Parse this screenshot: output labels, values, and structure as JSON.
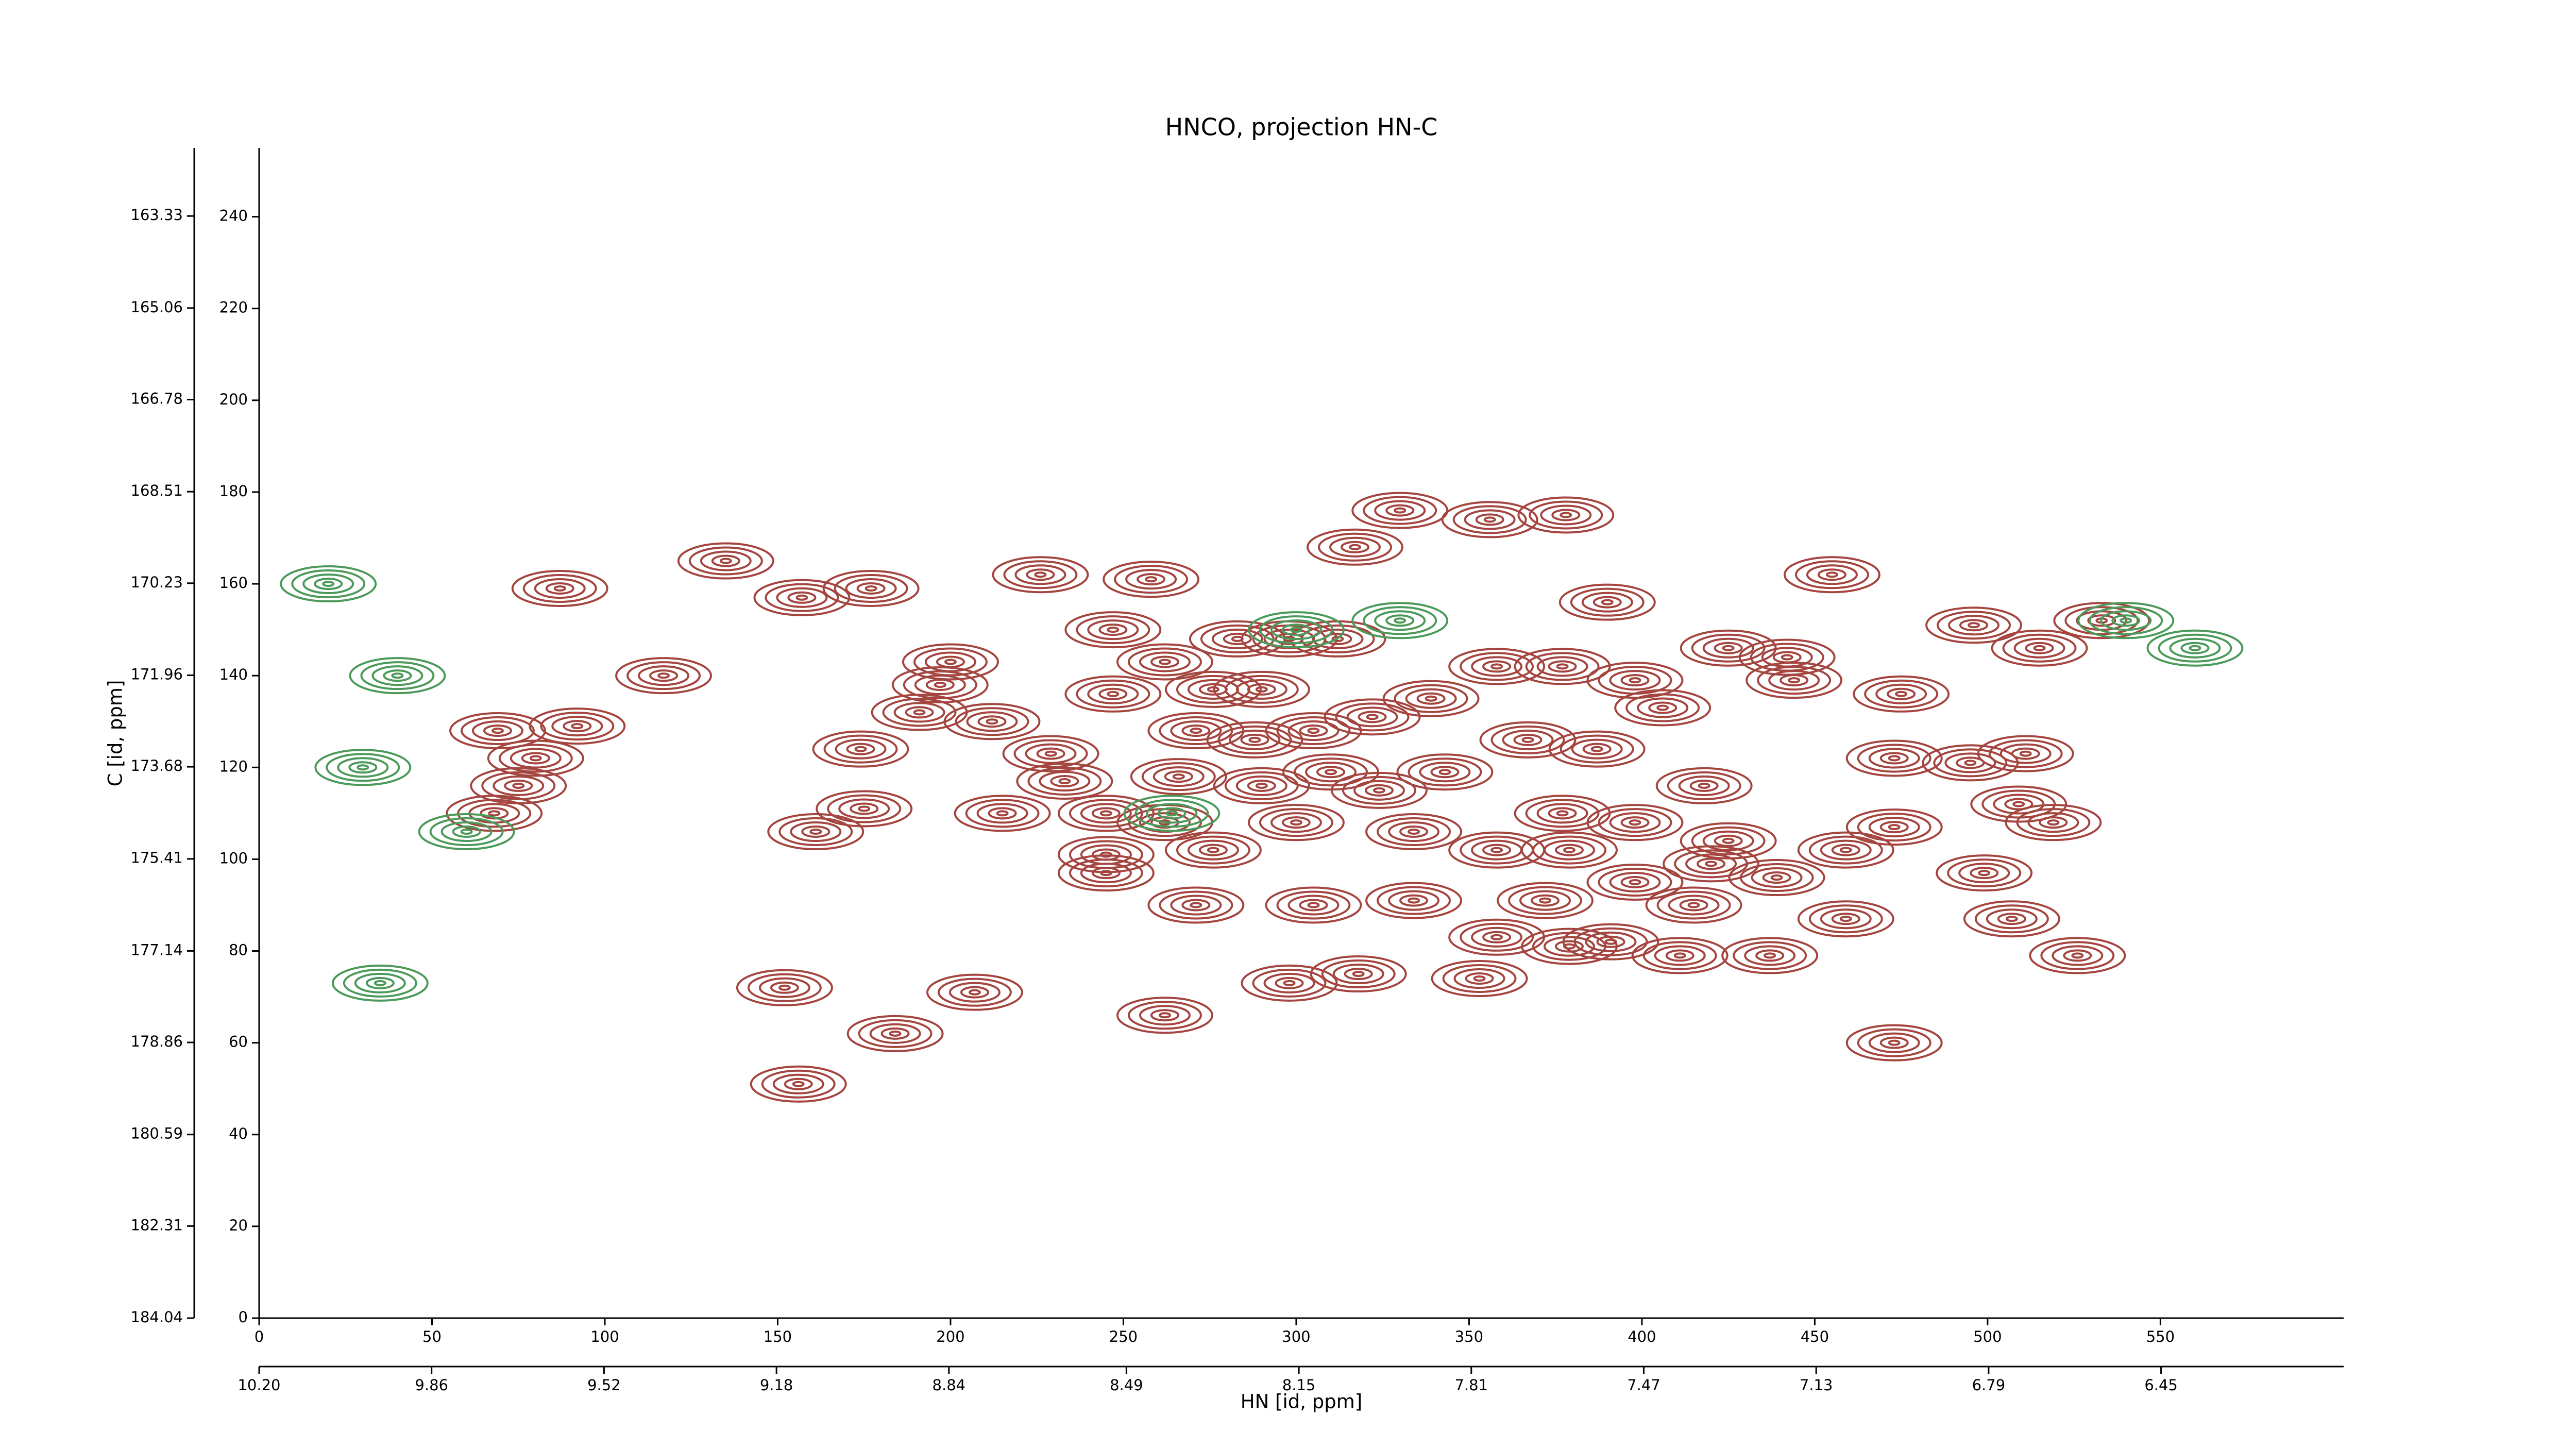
{
  "chart_data": {
    "type": "contour",
    "title": "HNCO, projection HN-C",
    "xlabel": "HN [id, ppm]",
    "ylabel": "C [id, ppm]",
    "xlim": [
      0,
      603
    ],
    "ylim": [
      0,
      255
    ],
    "xticks": [
      0,
      50,
      100,
      150,
      200,
      250,
      300,
      350,
      400,
      450,
      500,
      550
    ],
    "yticks": [
      0,
      20,
      40,
      60,
      80,
      100,
      120,
      140,
      160,
      180,
      200,
      220,
      240
    ],
    "x2lim": [
      10.2,
      6.09
    ],
    "x2ticks": [
      {
        "value": 10.2,
        "label": "10.20"
      },
      9.86,
      9.52,
      9.18,
      8.84,
      8.49,
      8.15,
      7.81,
      7.47,
      7.13,
      6.79,
      6.45
    ],
    "y2lim": [
      184.04,
      162.05
    ],
    "y2ticks": [
      184.04,
      182.31,
      180.59,
      178.86,
      177.14,
      175.41,
      173.68,
      171.96,
      170.23,
      168.51,
      166.78,
      165.06,
      163.33
    ],
    "series": [
      {
        "color": "#a4453f",
        "x": [
          87,
          135,
          157,
          177,
          226,
          258,
          330,
          356,
          378,
          317,
          390,
          455,
          496,
          533,
          515,
          117,
          200,
          197,
          191,
          212,
          69,
          92,
          80,
          75,
          68,
          174,
          229,
          233,
          215,
          175,
          161,
          247,
          262,
          247,
          283,
          298,
          312,
          276,
          290,
          271,
          288,
          305,
          322,
          339,
          358,
          377,
          398,
          406,
          425,
          442,
          444,
          475,
          367,
          387,
          418,
          343,
          266,
          290,
          310,
          324,
          245,
          262,
          377,
          398,
          425,
          245,
          245,
          276,
          300,
          334,
          358,
          379,
          398,
          420,
          439,
          459,
          473,
          495,
          511,
          509,
          519,
          473,
          499,
          271,
          305,
          334,
          372,
          415,
          507,
          459,
          358,
          379,
          391,
          411,
          437,
          526,
          353,
          318,
          298,
          152,
          207,
          262,
          184,
          473,
          156
        ],
        "y": [
          159,
          165,
          157,
          159,
          162,
          161,
          176,
          174,
          175,
          168,
          156,
          162,
          151,
          152,
          146,
          140,
          143,
          138,
          132,
          130,
          128,
          129,
          122,
          116,
          110,
          124,
          123,
          117,
          110,
          111,
          106,
          150,
          143,
          136,
          148,
          148,
          148,
          137,
          137,
          128,
          126,
          128,
          131,
          135,
          142,
          142,
          139,
          133,
          146,
          144,
          139,
          136,
          126,
          124,
          116,
          119,
          118,
          116,
          119,
          115,
          110,
          108,
          110,
          108,
          104,
          101,
          97,
          102,
          108,
          106,
          102,
          102,
          95,
          99,
          96,
          102,
          122,
          121,
          123,
          112,
          108,
          107,
          97,
          90,
          90,
          91,
          91,
          90,
          87,
          87,
          83,
          81,
          82,
          79,
          79,
          79,
          74,
          75,
          73,
          72,
          71,
          66,
          62,
          60,
          51
        ]
      },
      {
        "color": "#4c9a5a",
        "x": [
          40,
          30,
          60,
          35,
          540,
          560,
          300,
          330,
          264,
          20
        ],
        "y": [
          140,
          120,
          106,
          73,
          152,
          146,
          150,
          152,
          110,
          160
        ]
      }
    ]
  }
}
